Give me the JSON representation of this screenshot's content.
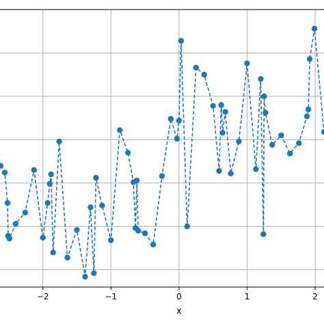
{
  "chart_data": {
    "type": "line",
    "title": "",
    "xlabel": "x",
    "ylabel": "",
    "xlim": [
      -2.63,
      2.13
    ],
    "ylim": [
      -1.45,
      1.75
    ],
    "x_ticks": [
      -2,
      -1,
      0,
      1,
      2
    ],
    "x_tick_labels": [
      "−2",
      "−1",
      "0",
      "1",
      "2"
    ],
    "y_gridlines": [
      -1.25,
      -0.75,
      -0.25,
      0.25,
      0.75,
      1.25
    ],
    "grid": true,
    "line_style": "dashed",
    "marker": "circle",
    "color": "#1f77b4",
    "series": [
      {
        "x": [
          -2.62,
          -2.56,
          -2.52,
          -2.51,
          -2.49,
          -2.4,
          -2.26,
          -2.13,
          -2.0,
          -1.93,
          -1.9,
          -1.88,
          -1.85,
          -1.76,
          -1.64,
          -1.5,
          -1.38,
          -1.3,
          -1.25,
          -1.22,
          -1.13,
          -1.0,
          -0.87,
          -0.75,
          -0.67,
          -0.64,
          -0.62,
          -0.6,
          -0.5,
          -0.38,
          -0.25,
          -0.12,
          -0.03,
          0.0,
          0.03,
          0.12,
          0.25,
          0.37,
          0.5,
          0.59,
          0.62,
          0.64,
          0.68,
          0.76,
          0.88,
          1.0,
          1.13,
          1.2,
          1.24,
          1.25,
          1.27,
          1.37,
          1.5,
          1.63,
          1.76,
          1.88,
          1.9,
          1.92,
          1.99,
          2.13
        ],
        "y": [
          -0.05,
          -0.13,
          -0.48,
          -0.86,
          -0.89,
          -0.72,
          -0.59,
          -0.1,
          -0.88,
          -0.48,
          -0.26,
          -0.15,
          -1.05,
          0.23,
          -1.11,
          -0.79,
          -1.33,
          -0.53,
          -1.29,
          -0.19,
          -0.51,
          -0.91,
          0.36,
          0.1,
          -0.24,
          -0.77,
          -0.22,
          -0.8,
          -0.83,
          -0.96,
          -0.17,
          0.49,
          0.26,
          0.47,
          1.39,
          -0.75,
          1.08,
          1.0,
          0.64,
          -0.11,
          0.65,
          0.33,
          0.57,
          -0.14,
          0.23,
          1.13,
          -0.09,
          0.95,
          -0.84,
          0.75,
          0.56,
          0.19,
          0.3,
          0.09,
          0.21,
          0.52,
          0.6,
          1.18,
          1.53,
          0.34
        ]
      }
    ]
  }
}
